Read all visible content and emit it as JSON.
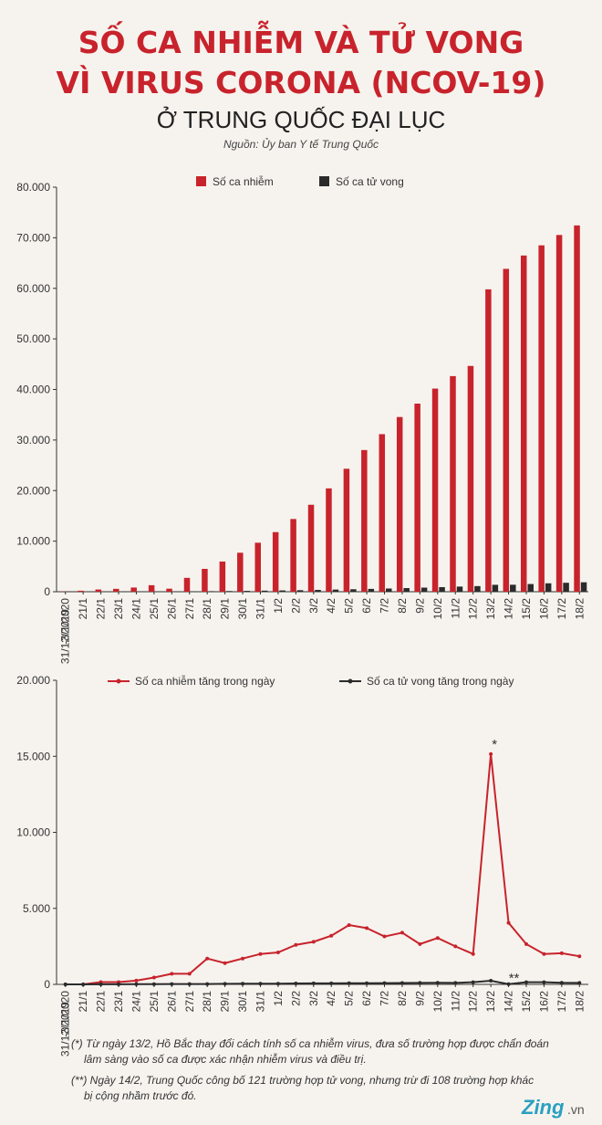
{
  "header": {
    "title_line1": "SỐ CA NHIỄM VÀ TỬ VONG",
    "title_line2": "VÌ VIRUS CORONA (NCOV-19)",
    "subtitle": "Ở TRUNG QUỐC ĐẠI LỤC",
    "source": "Nguồn: Ủy ban Y tế Trung Quốc"
  },
  "chart_data": [
    {
      "type": "bar",
      "categories": [
        "31/12/2019 -3/1/2020",
        "21/1",
        "22/1",
        "23/1",
        "24/1",
        "25/1",
        "26/1",
        "27/1",
        "28/1",
        "29/1",
        "30/1",
        "31/1",
        "1/2",
        "2/2",
        "3/2",
        "4/2",
        "5/2",
        "6/2",
        "7/2",
        "8/2",
        "9/2",
        "10/2",
        "11/2",
        "12/2",
        "13/2",
        "14/2",
        "15/2",
        "16/2",
        "17/2",
        "18/2"
      ],
      "series": [
        {
          "name": "Số ca nhiễm",
          "color": "#c8232c",
          "values": [
            40,
            200,
            440,
            570,
            830,
            1290,
            600,
            2740,
            4520,
            5970,
            7710,
            9690,
            11790,
            14380,
            17200,
            20440,
            24320,
            28020,
            31160,
            34550,
            37200,
            40170,
            42640,
            44650,
            59800,
            63850,
            66490,
            68500,
            70550,
            72440
          ]
        },
        {
          "name": "Số ca tử vong",
          "color": "#2b2b2b",
          "values": [
            0,
            6,
            9,
            17,
            25,
            41,
            56,
            80,
            106,
            132,
            170,
            213,
            259,
            304,
            361,
            425,
            490,
            563,
            636,
            722,
            811,
            908,
            1016,
            1113,
            1367,
            1380,
            1523,
            1665,
            1770,
            1868
          ]
        }
      ],
      "ylim": [
        0,
        80000
      ],
      "yticks": [
        0,
        {
          "value": 10000,
          "label": "10.000"
        },
        {
          "value": 20000,
          "label": "20.000"
        },
        {
          "value": 30000,
          "label": "30.000"
        },
        {
          "value": 40000,
          "label": "40.000"
        },
        {
          "value": 50000,
          "label": "50.000"
        },
        {
          "value": 60000,
          "label": "60.000"
        },
        {
          "value": 70000,
          "label": "70.000"
        },
        {
          "value": 80000,
          "label": "80.000"
        }
      ]
    },
    {
      "type": "line",
      "categories": [
        "31/12/2019 -3/1/2020",
        "21/1",
        "22/1",
        "23/1",
        "24/1",
        "25/1",
        "26/1",
        "27/1",
        "28/1",
        "29/1",
        "30/1",
        "31/1",
        "1/2",
        "2/2",
        "3/2",
        "4/2",
        "5/2",
        "6/2",
        "7/2",
        "8/2",
        "9/2",
        "10/2",
        "11/2",
        "12/2",
        "13/2",
        "14/2",
        "15/2",
        "16/2",
        "17/2",
        "18/2"
      ],
      "series": [
        {
          "name": "Số ca nhiễm tăng trong ngày",
          "color": "#c8232c",
          "values": [
            0,
            0,
            150,
            150,
            250,
            450,
            700,
            700,
            1700,
            1400,
            1700,
            2000,
            2100,
            2600,
            2800,
            3200,
            3900,
            3700,
            3150,
            3400,
            2650,
            3050,
            2500,
            2000,
            15150,
            4050,
            2650,
            2000,
            2050,
            1850
          ]
        },
        {
          "name": "Số ca tử vong tăng trong ngày",
          "color": "#2b2b2b",
          "values": [
            0,
            3,
            8,
            8,
            16,
            15,
            24,
            26,
            26,
            38,
            43,
            46,
            45,
            57,
            64,
            65,
            73,
            73,
            86,
            89,
            97,
            108,
            97,
            146,
            242,
            13,
            143,
            142,
            105,
            98
          ]
        }
      ],
      "ylim": [
        0,
        20000
      ],
      "yticks": [
        0,
        {
          "value": 5000,
          "label": "5.000"
        },
        {
          "value": 10000,
          "label": "10.000"
        },
        {
          "value": 15000,
          "label": "15.000"
        },
        {
          "value": 20000,
          "label": "20.000"
        }
      ],
      "annotations": [
        {
          "text": "*",
          "series": 0,
          "index": 24
        },
        {
          "text": "**",
          "series": 1,
          "index": 25
        }
      ]
    }
  ],
  "footnotes": [
    "(*) Từ ngày 13/2, Hồ Bắc thay đổi cách tính số ca nhiễm virus, đưa số trường hợp được chẩn đoán",
    "lâm sàng vào số ca được xác nhận nhiễm virus và điều trị.",
    "(**) Ngày 14/2, Trung Quốc công bố 121 trường hợp tử vong, nhưng trừ đi 108 trường hợp khác",
    "bị cộng nhầm trước đó."
  ],
  "logo": {
    "brand": "Zing",
    ".suffix": ".vn"
  }
}
